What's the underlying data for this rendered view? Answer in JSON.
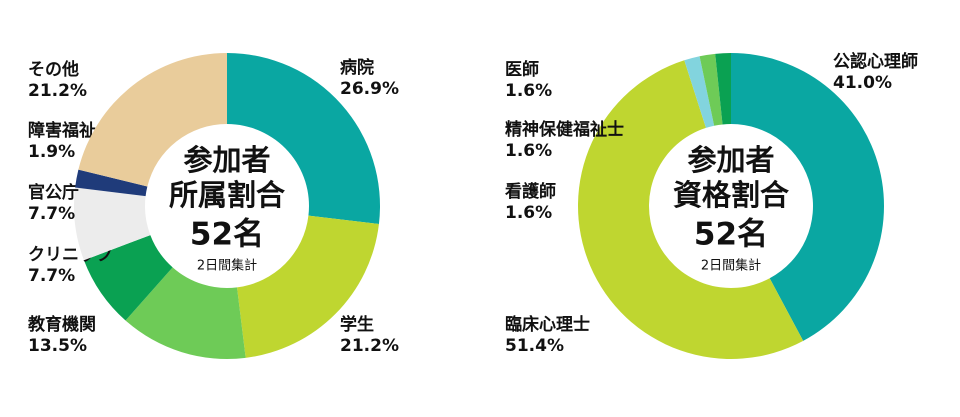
{
  "chart_data": [
    {
      "type": "pie",
      "center_text": [
        "参加者",
        "所属割合",
        "52名"
      ],
      "note": "2日間集計",
      "categories": [
        "病院",
        "学生",
        "教育機関",
        "クリニック",
        "官公庁",
        "障害福祉",
        "その他"
      ],
      "values": [
        26.9,
        21.2,
        13.5,
        7.7,
        7.7,
        1.9,
        21.2
      ],
      "value_labels": [
        "26.9%",
        "21.2%",
        "13.5%",
        "7.7%",
        "7.7%",
        "1.9%",
        "21.2%"
      ],
      "colors": [
        "#0aa7a2",
        "#bfd630",
        "#6ecb57",
        "#0aa152",
        "#ececec",
        "#1f3b7a",
        "#e9cc9b"
      ]
    },
    {
      "type": "pie",
      "center_text": [
        "参加者",
        "資格割合",
        "52名"
      ],
      "note": "2日間集計",
      "categories": [
        "公認心理師",
        "臨床心理士",
        "看護師",
        "精神保健福祉士",
        "医師"
      ],
      "values": [
        41.0,
        51.4,
        1.6,
        1.6,
        1.6
      ],
      "value_labels": [
        "41.0%",
        "51.4%",
        "1.6%",
        "1.6%",
        "1.6%"
      ],
      "colors": [
        "#0aa7a2",
        "#bfd630",
        "#82d4de",
        "#6ecb57",
        "#0aa152"
      ]
    }
  ]
}
